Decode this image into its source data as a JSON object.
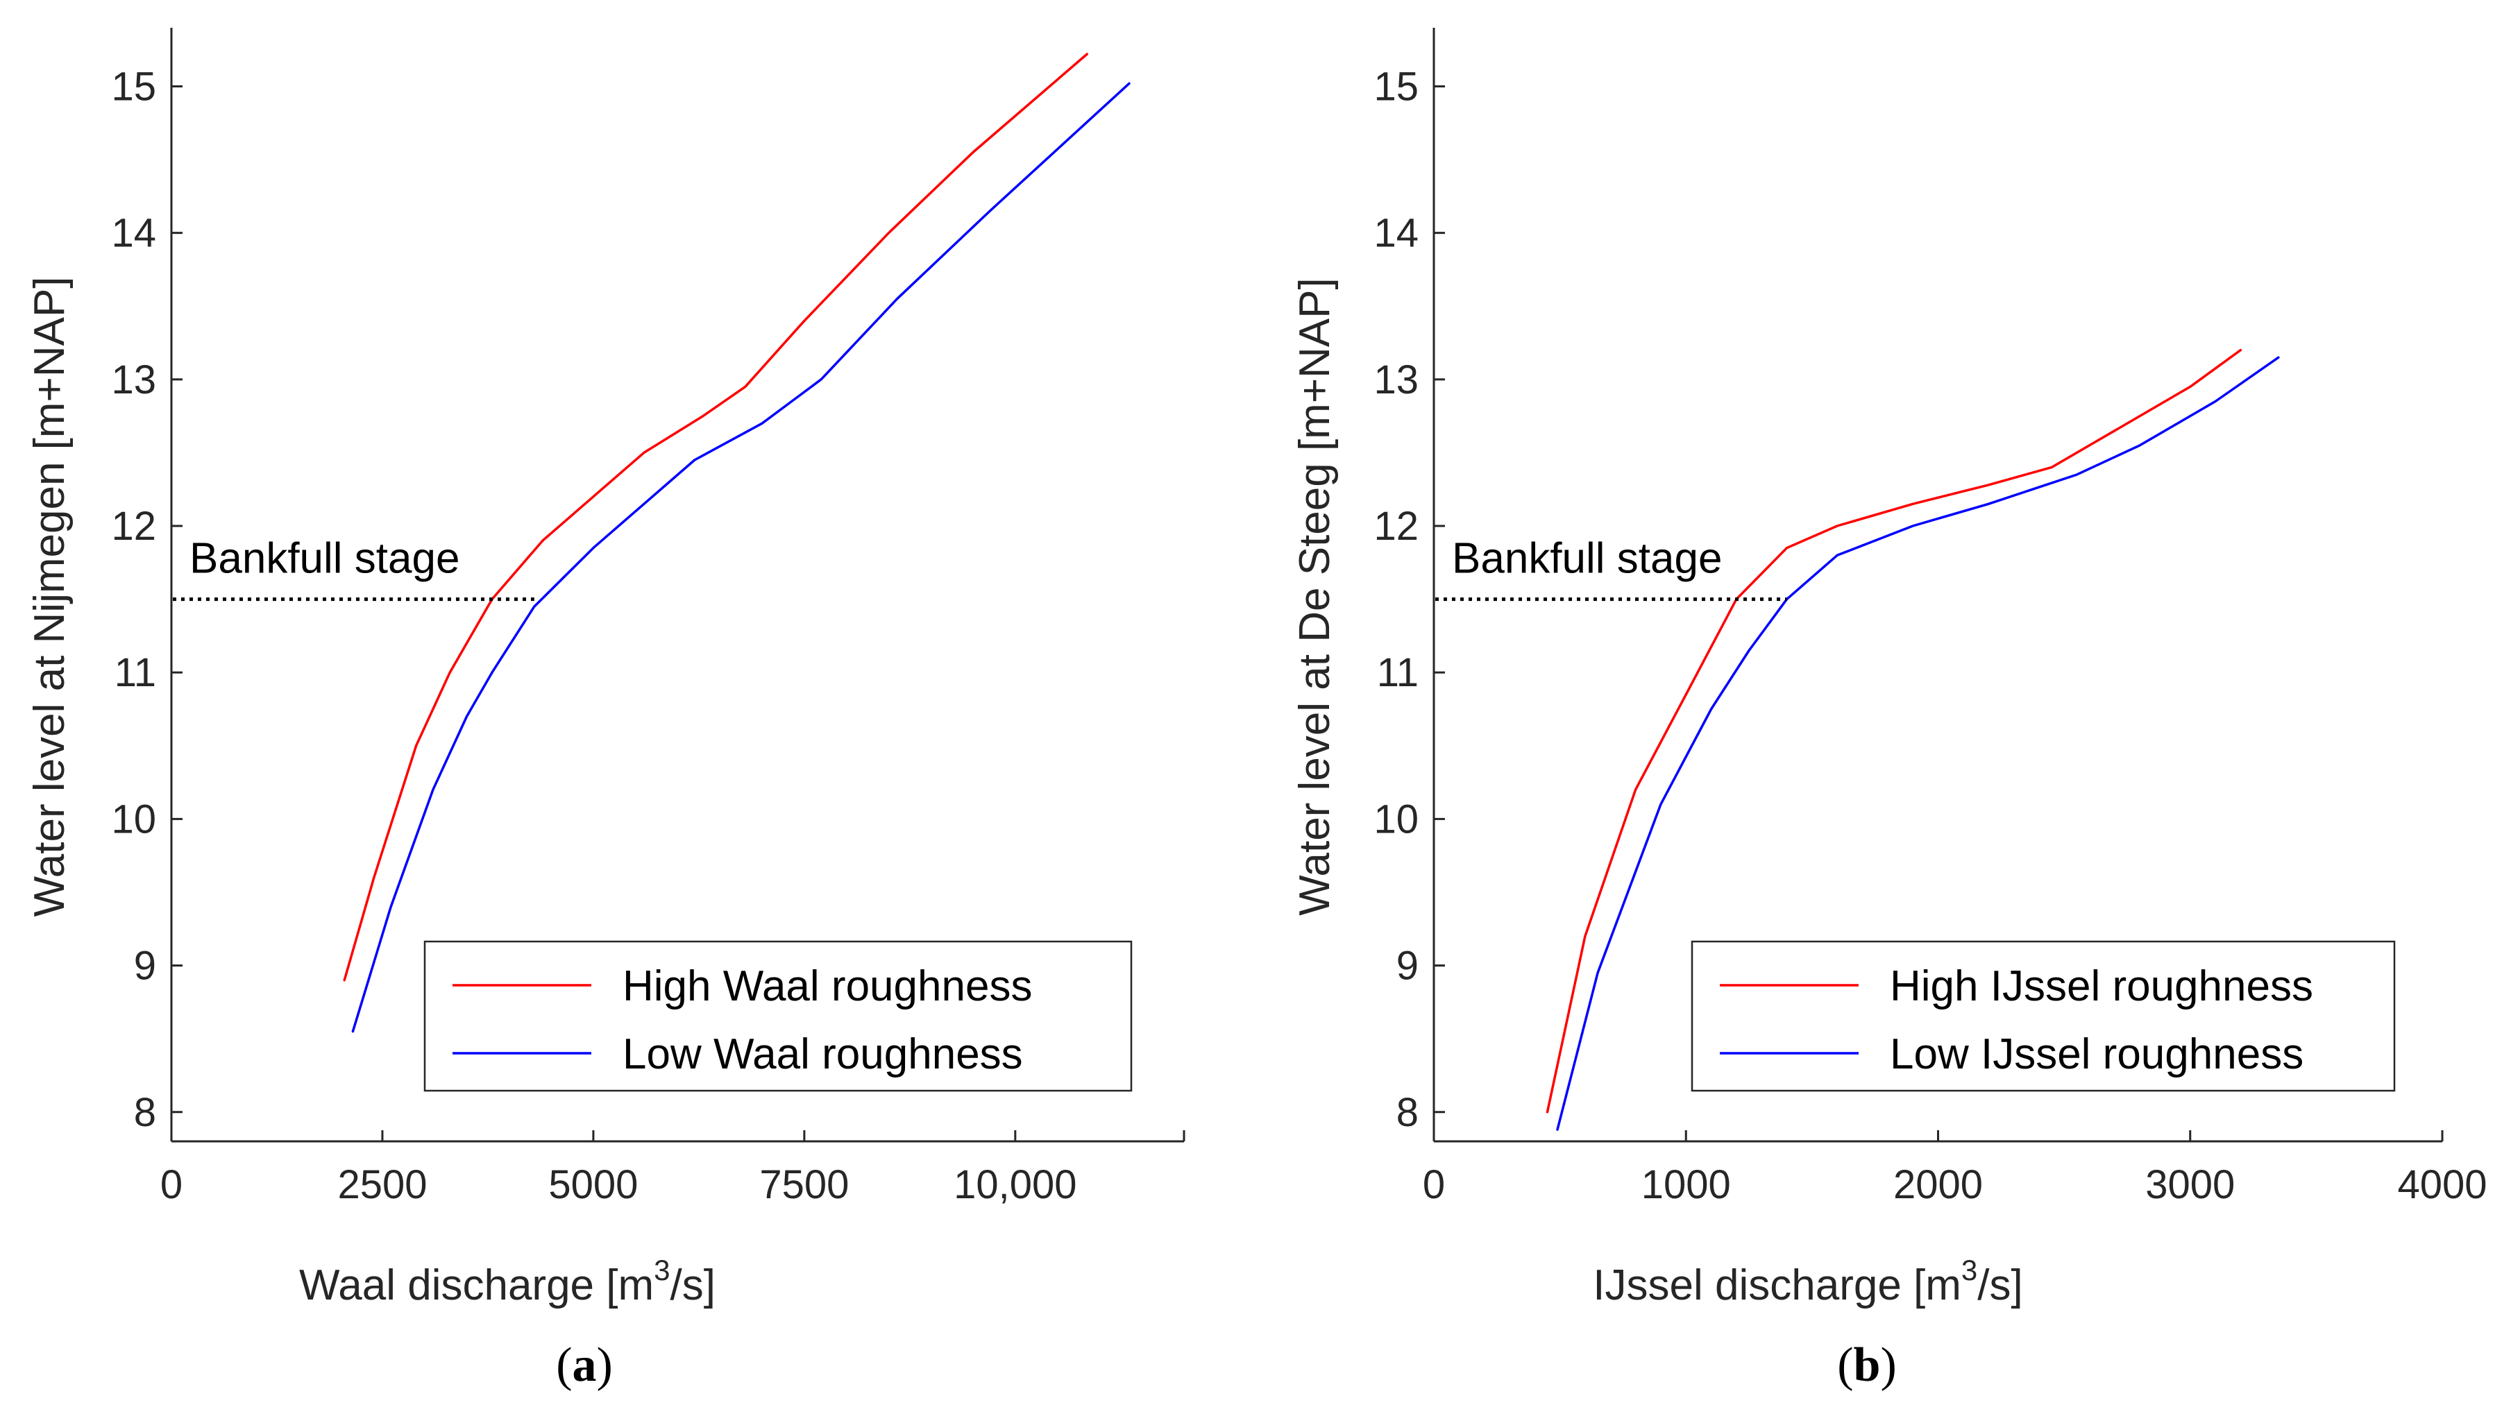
{
  "chart_data": [
    {
      "type": "line",
      "panel_label": "a",
      "xlabel": "Waal discharge [m",
      "xlabel_sup": "3",
      "xlabel_end": "/s]",
      "ylabel": "Water level at Nijmegen [m+NAP]",
      "xlim": [
        0,
        12000
      ],
      "ylim": [
        7.8,
        15.4
      ],
      "xticks": [
        0,
        2500,
        5000,
        7500,
        10000
      ],
      "xtick_labels": [
        "0",
        "2500",
        "5000",
        "7500",
        "10,000"
      ],
      "yticks": [
        8,
        9,
        10,
        11,
        12,
        13,
        14,
        15
      ],
      "ytick_labels": [
        "8",
        "9",
        "10",
        "11",
        "12",
        "13",
        "14",
        "15"
      ],
      "series": [
        {
          "name": "High Waal roughness",
          "color": "#ff0000",
          "x": [
            2050,
            2400,
            2900,
            3300,
            3800,
            4400,
            5000,
            5600,
            6300,
            6800,
            7500,
            8500,
            9500,
            10850
          ],
          "y": [
            8.9,
            9.6,
            10.5,
            11.0,
            11.5,
            11.9,
            12.2,
            12.5,
            12.75,
            12.95,
            13.4,
            14.0,
            14.55,
            15.22
          ]
        },
        {
          "name": "Low Waal roughness",
          "color": "#0000ff",
          "x": [
            2150,
            2600,
            3100,
            3500,
            3800,
            4300,
            5000,
            5600,
            6200,
            7000,
            7700,
            8600,
            9700,
            11350
          ],
          "y": [
            8.55,
            9.4,
            10.2,
            10.7,
            11.0,
            11.45,
            11.85,
            12.15,
            12.45,
            12.7,
            13.0,
            13.55,
            14.15,
            15.02
          ]
        }
      ],
      "annotation": {
        "label": "Bankfull stage",
        "y": 11.5,
        "x_range": [
          0,
          4300
        ]
      },
      "legend_position": "bottom-right"
    },
    {
      "type": "line",
      "panel_label": "b",
      "xlabel": "IJssel discharge [m",
      "xlabel_sup": "3",
      "xlabel_end": "/s]",
      "ylabel": "Water level at De Steeg [m+NAP]",
      "xlim": [
        0,
        4000
      ],
      "ylim": [
        7.8,
        15.4
      ],
      "xticks": [
        0,
        1000,
        2000,
        3000,
        4000
      ],
      "xtick_labels": [
        "0",
        "1000",
        "2000",
        "3000",
        "4000"
      ],
      "yticks": [
        8,
        9,
        10,
        11,
        12,
        13,
        14,
        15
      ],
      "ytick_labels": [
        "8",
        "9",
        "10",
        "11",
        "12",
        "13",
        "14",
        "15"
      ],
      "series": [
        {
          "name": "High IJssel roughness",
          "color": "#ff0000",
          "x": [
            450,
            600,
            800,
            1000,
            1200,
            1400,
            1600,
            1900,
            2200,
            2450,
            2700,
            3000,
            3200
          ],
          "y": [
            8.0,
            9.2,
            10.2,
            10.85,
            11.5,
            11.85,
            12.0,
            12.15,
            12.28,
            12.4,
            12.65,
            12.95,
            13.2
          ]
        },
        {
          "name": "Low IJssel roughness",
          "color": "#0000ff",
          "x": [
            490,
            650,
            900,
            1100,
            1250,
            1400,
            1600,
            1900,
            2200,
            2550,
            2800,
            3100,
            3350
          ],
          "y": [
            7.88,
            8.95,
            10.1,
            10.75,
            11.15,
            11.5,
            11.8,
            12.0,
            12.15,
            12.35,
            12.55,
            12.85,
            13.15
          ]
        }
      ],
      "annotation": {
        "label": "Bankfull stage",
        "y": 11.5,
        "x_range": [
          0,
          1400
        ]
      },
      "legend_position": "bottom-right"
    }
  ]
}
